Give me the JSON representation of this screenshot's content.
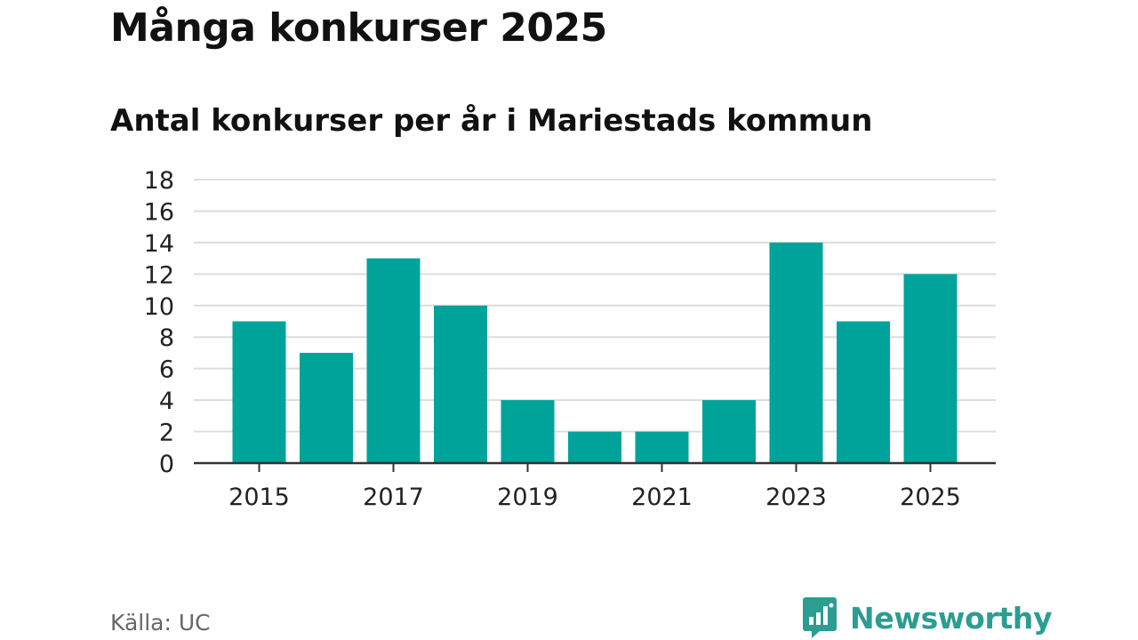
{
  "header": {
    "title": "Många konkurser 2025",
    "subtitle": "Antal konkurser per år i Mariestads kommun"
  },
  "chart_data": {
    "type": "bar",
    "x": [
      2015,
      2016,
      2017,
      2018,
      2019,
      2020,
      2021,
      2022,
      2023,
      2024,
      2025
    ],
    "values": [
      9,
      7,
      13,
      10,
      4,
      2,
      2,
      4,
      14,
      9,
      12
    ],
    "x_tick_labels": [
      "2015",
      "2017",
      "2019",
      "2021",
      "2023",
      "2025"
    ],
    "y_ticks": [
      0,
      2,
      4,
      6,
      8,
      10,
      12,
      14,
      16,
      18
    ],
    "ylim": [
      0,
      18
    ],
    "grid": true,
    "xlabel": "",
    "ylabel": "",
    "bar_color": "#00a39a",
    "grid_color": "#dddddd",
    "axis_color": "#333333"
  },
  "footer": {
    "source": "Källa: UC",
    "brand": "Newsworthy",
    "brand_icon": "bar-chart-speech-bubble-icon",
    "brand_color": "#2b9d91"
  }
}
